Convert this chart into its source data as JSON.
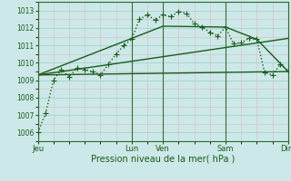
{
  "background_color": "#cce8e8",
  "grid_color_major": "#aacfcf",
  "grid_color_minor": "#dbbcbc",
  "line_color": "#1a5c1a",
  "title": "Pression niveau de la mer( hPa )",
  "xlim": [
    0,
    96
  ],
  "ylim": [
    1005.5,
    1013.5
  ],
  "yticks": [
    1006,
    1007,
    1008,
    1009,
    1010,
    1011,
    1012,
    1013
  ],
  "xtick_labels": [
    "Jeu",
    "Lun",
    "Ven",
    "Sam",
    "Dim"
  ],
  "xtick_positions": [
    0,
    36,
    48,
    72,
    96
  ],
  "vlines": [
    0,
    36,
    48,
    72,
    96
  ],
  "series1_dotted": {
    "x": [
      0,
      3,
      6,
      9,
      12,
      15,
      18,
      21,
      24,
      27,
      30,
      33,
      36,
      39,
      42,
      45,
      48,
      51,
      54,
      57,
      60,
      63,
      66,
      69,
      72,
      75,
      78,
      81,
      84,
      87,
      90,
      93,
      96
    ],
    "y": [
      1006.0,
      1007.1,
      1009.0,
      1009.6,
      1009.2,
      1009.7,
      1009.6,
      1009.5,
      1009.3,
      1009.9,
      1010.5,
      1011.0,
      1011.35,
      1012.5,
      1012.75,
      1012.45,
      1012.75,
      1012.65,
      1012.95,
      1012.85,
      1012.25,
      1012.05,
      1011.75,
      1011.55,
      1012.05,
      1011.1,
      1011.15,
      1011.4,
      1011.35,
      1009.45,
      1009.3,
      1009.9,
      1009.55
    ],
    "linewidth": 1.0,
    "linestyle": "dotted",
    "marker": "+",
    "markersize": 4.0
  },
  "series2_flat": {
    "x": [
      0,
      96
    ],
    "y": [
      1009.3,
      1009.5
    ],
    "linewidth": 1.0,
    "linestyle": "solid"
  },
  "series3_rising": {
    "x": [
      0,
      96
    ],
    "y": [
      1009.3,
      1011.4
    ],
    "linewidth": 1.0,
    "linestyle": "solid"
  },
  "series4_peak": {
    "x": [
      0,
      48,
      72,
      84,
      96
    ],
    "y": [
      1009.3,
      1012.1,
      1012.05,
      1011.35,
      1009.5
    ],
    "linewidth": 1.0,
    "linestyle": "solid"
  }
}
